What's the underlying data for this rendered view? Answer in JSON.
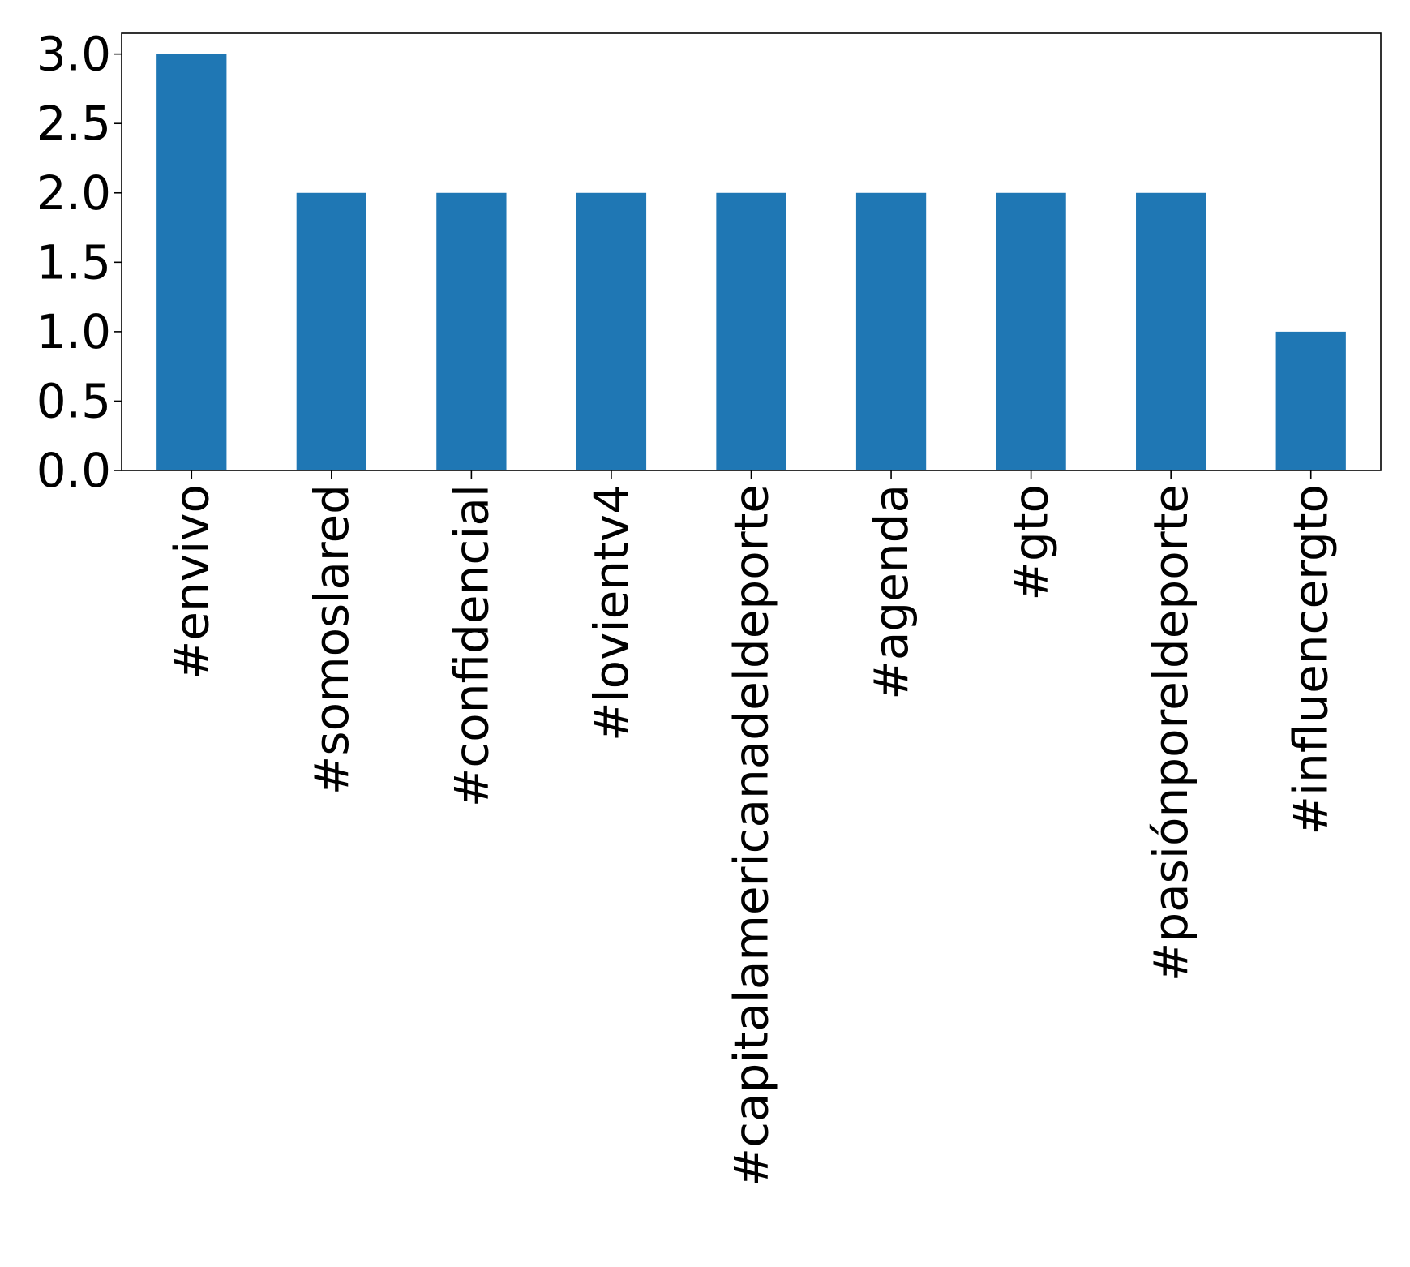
{
  "chart_data": {
    "type": "bar",
    "categories": [
      "#envivo",
      "#somoslared",
      "#confidencial",
      "#lovientv4",
      "#capitalamericanadeldeporte",
      "#agenda",
      "#gto",
      "#pasiónporeldeporte",
      "#influencergto"
    ],
    "values": [
      3,
      2,
      2,
      2,
      2,
      2,
      2,
      2,
      1
    ],
    "ylim": [
      0,
      3.15
    ],
    "yticks": [
      0.0,
      0.5,
      1.0,
      1.5,
      2.0,
      2.5,
      3.0
    ],
    "ytick_labels": [
      "0.0",
      "0.5",
      "1.0",
      "1.5",
      "2.0",
      "2.5",
      "3.0"
    ],
    "title": "",
    "xlabel": "",
    "ylabel": "",
    "grid": false,
    "bar_color": "#1f77b4"
  }
}
